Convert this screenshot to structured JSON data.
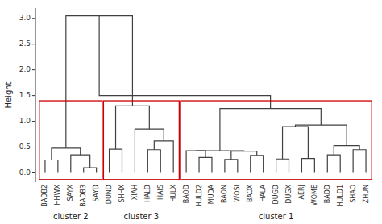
{
  "chart_data": {
    "type": "dendrogram",
    "categories": [
      "BADB2",
      "HHWX",
      "SAYX",
      "BADB3",
      "SAYD",
      "DUND",
      "SHHX",
      "XIAH",
      "HALD",
      "HAIS",
      "HULX",
      "BAOD",
      "HULD2",
      "MUDA",
      "BAON",
      "WOSI",
      "BAOX",
      "HALA",
      "DUGD",
      "DUGX",
      "AERJ",
      "WOME",
      "BADD",
      "HULD1",
      "SHAO",
      "ZHUN"
    ],
    "y_label": "Height",
    "ylim": [
      -0.18,
      3.2
    ],
    "yticks": [
      {
        "value": 0.0,
        "label": "0.0"
      },
      0.5,
      {
        "value": 1.0,
        "label": "1.0"
      },
      1.5,
      {
        "value": 2.0,
        "label": "2.0"
      },
      2.5,
      {
        "value": 3.0,
        "label": "3.0"
      }
    ],
    "grid": false,
    "color": "#404040",
    "tree": {
      "height": 1.5,
      "children": [
        {
          "height": 3.05,
          "children": [
            {
              "height": 0.48,
              "children": [
                {
                  "height": 0.25,
                  "children": [
                    "BADB2",
                    "HHWX"
                  ]
                },
                {
                  "height": 0.35,
                  "children": [
                    "SAYX",
                    {
                      "height": 0.1,
                      "children": [
                        "BADB3",
                        "SAYD"
                      ]
                    }
                  ]
                }
              ]
            },
            {
              "height": 1.3,
              "children": [
                {
                  "height": 0.46,
                  "children": [
                    "DUND",
                    "SHHX"
                  ]
                },
                {
                  "height": 0.85,
                  "children": [
                    "XIAH",
                    {
                      "height": 0.62,
                      "children": [
                        {
                          "height": 0.45,
                          "children": [
                            "HALD",
                            "HAIS"
                          ]
                        },
                        "HULX"
                      ]
                    }
                  ]
                }
              ]
            }
          ]
        },
        {
          "height": 1.25,
          "children": [
            {
              "height": 0.43,
              "children": [
                {
                  "height": 0.43,
                  "children": [
                    "BAOD",
                    {
                      "height": 0.3,
                      "children": [
                        "HULD2",
                        "MUDA"
                      ]
                    }
                  ]
                },
                {
                  "height": 0.42,
                  "children": [
                    {
                      "height": 0.26,
                      "children": [
                        "BAON",
                        "WOSI"
                      ]
                    },
                    {
                      "height": 0.34,
                      "children": [
                        "BAOX",
                        "HALA"
                      ]
                    }
                  ]
                }
              ]
            },
            {
              "height": 0.93,
              "children": [
                {
                  "height": 0.9,
                  "children": [
                    {
                      "height": 0.27,
                      "children": [
                        "DUGD",
                        "DUGX"
                      ]
                    },
                    {
                      "height": 0.28,
                      "children": [
                        "AERJ",
                        "WOME"
                      ]
                    }
                  ]
                },
                {
                  "height": 0.53,
                  "children": [
                    {
                      "height": 0.35,
                      "children": [
                        "BADD",
                        "HULD1"
                      ]
                    },
                    {
                      "height": 0.45,
                      "children": [
                        "SHAO",
                        "ZHUN"
                      ]
                    }
                  ]
                }
              ]
            }
          ]
        }
      ]
    },
    "clusters": [
      {
        "label": "cluster 2",
        "members": [
          "BADB2",
          "HHWX",
          "SAYX",
          "BADB3",
          "SAYD"
        ],
        "ymin": -0.13,
        "ymax": 1.4,
        "color": "#cc0000"
      },
      {
        "label": "cluster 3",
        "members": [
          "DUND",
          "SHHX",
          "XIAH",
          "HALD",
          "HAIS",
          "HULX"
        ],
        "ymin": -0.13,
        "ymax": 1.4,
        "color": "#cc0000"
      },
      {
        "label": "cluster 1",
        "members": [
          "BAOD",
          "HULD2",
          "MUDA",
          "BAON",
          "WOSI",
          "BAOX",
          "HALA",
          "DUGD",
          "DUGX",
          "AERJ",
          "WOME",
          "BADD",
          "HULD1",
          "SHAO",
          "ZHUN"
        ],
        "ymin": -0.13,
        "ymax": 1.4,
        "color": "#cc0000"
      }
    ]
  }
}
